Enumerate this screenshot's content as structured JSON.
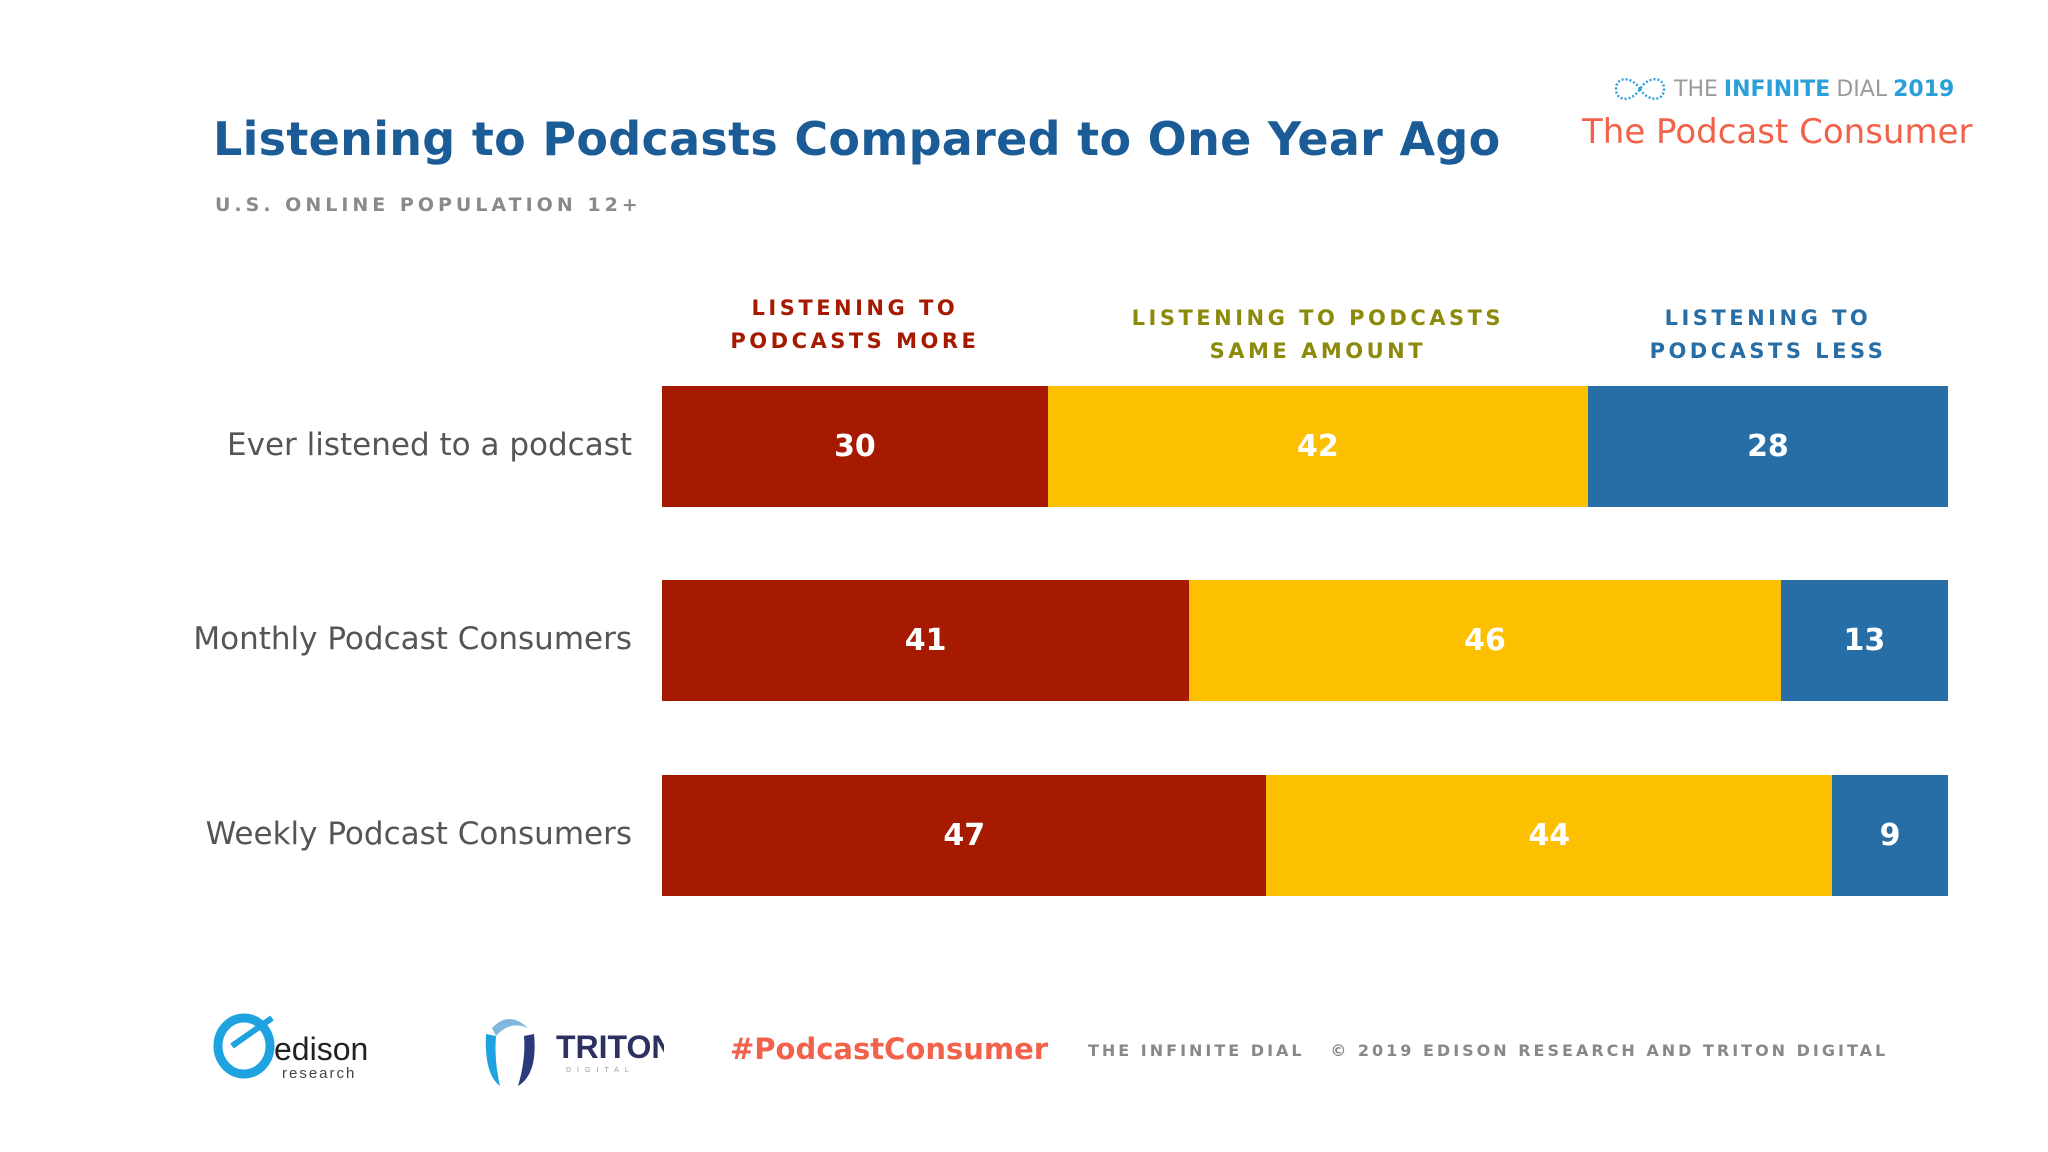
{
  "header": {
    "brand_the": "THE",
    "brand_infinite": "INFINITE",
    "brand_dial": "DIAL",
    "brand_year": "2019",
    "brand_subtitle": "The Podcast Consumer"
  },
  "footer": {
    "edison_logo_text": "edison research",
    "triton_logo_text": "TRITON DIGITAL",
    "hashtag": "#PodcastConsumer",
    "copyright": "THE INFINITE DIAL   © 2019 EDISON RESEARCH AND TRITON DIGITAL"
  },
  "chart_data": {
    "type": "bar",
    "orientation": "horizontal",
    "stacked": true,
    "title": "Listening to Podcasts Compared to One Year Ago",
    "subtitle": "U.S. ONLINE POPULATION 12+",
    "categories": [
      "Ever listened to a podcast",
      "Monthly Podcast Consumers",
      "Weekly Podcast Consumers"
    ],
    "series": [
      {
        "name": "LISTENING TO\nPODCASTS MORE",
        "color": "#a51a00",
        "label_color": "#a51a00",
        "values": [
          30,
          41,
          47
        ]
      },
      {
        "name": "LISTENING TO PODCASTS\nSAME AMOUNT",
        "color": "#fdc000",
        "label_color": "#8c8a0a",
        "values": [
          42,
          46,
          44
        ]
      },
      {
        "name": "LISTENING TO\nPODCASTS LESS",
        "color": "#286ea6",
        "label_color": "#286ea6",
        "values": [
          28,
          13,
          9
        ]
      }
    ],
    "xlim": [
      0,
      100
    ],
    "grid": false,
    "legend": "top"
  }
}
